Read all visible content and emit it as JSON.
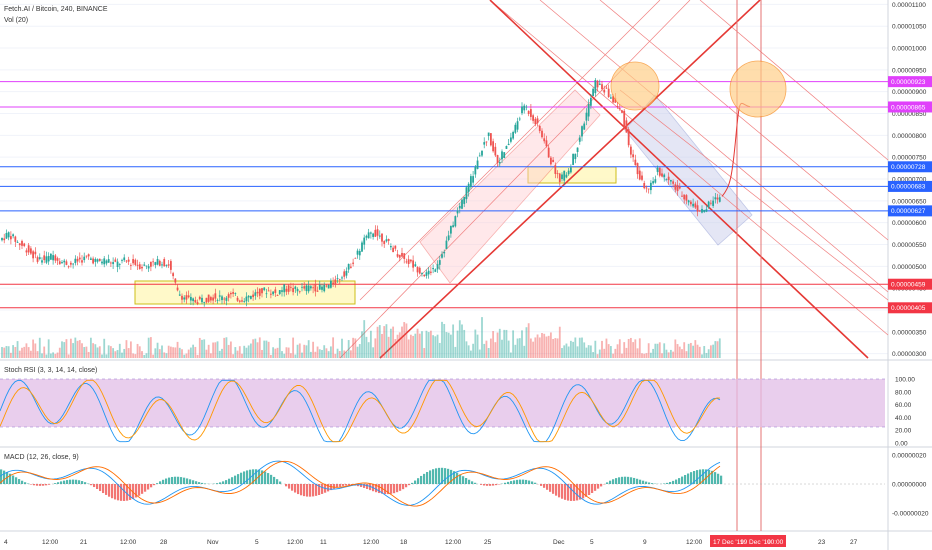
{
  "header": {
    "symbol_line": "Fetch.AI / Bitcoin, 240, BINANCE",
    "volume_label": "Vol (20)"
  },
  "indicators": {
    "stoch_rsi_label": "Stoch RSI (3, 3, 14, 14, close)",
    "macd_label": "MACD (12, 26, close, 9)"
  },
  "price_axis": {
    "ticks": [
      "0.00001100",
      "0.00001050",
      "0.00001000",
      "0.00000950",
      "0.00000900",
      "0.00000850",
      "0.00000800",
      "0.00000750",
      "0.00000700",
      "0.00000650",
      "0.00000600",
      "0.00000550",
      "0.00000500",
      "0.00000450",
      "0.00000400",
      "0.00000350",
      "0.00000300"
    ],
    "tags": [
      {
        "text": "0.00000923",
        "color": "#e040fb"
      },
      {
        "text": "0.00000865",
        "color": "#e040fb"
      },
      {
        "text": "0.00000728",
        "color": "#2962ff"
      },
      {
        "text": "0.00000683",
        "color": "#2962ff"
      },
      {
        "text": "0.00000627",
        "color": "#2962ff"
      },
      {
        "text": "0.00000459",
        "color": "#f23645"
      },
      {
        "text": "0.00000405",
        "color": "#f23645"
      }
    ]
  },
  "stoch_axis": {
    "ticks": [
      "100.00",
      "80.00",
      "60.00",
      "40.00",
      "20.00",
      "0.00"
    ]
  },
  "macd_axis": {
    "ticks": [
      "0.00000020",
      "0.00000000",
      "-0.00000020"
    ]
  },
  "time_axis": {
    "labels": [
      "4",
      "12:00",
      "21",
      "12:00",
      "28",
      "Nov",
      "5",
      "12:00",
      "11",
      "12:00",
      "18",
      "12:00",
      "25",
      "Dec",
      "5",
      "9",
      "12:00",
      "23",
      "27"
    ],
    "highlight": [
      "17 Dec '19",
      "19 Dec '19",
      "00:00"
    ],
    "highlight_color": "#f23645"
  },
  "colors": {
    "up": "#26a69a",
    "down": "#ef5350",
    "resistance": "#f23645",
    "magenta": "#e040fb",
    "blue": "#2962ff",
    "stoch_band": "#e1bee7",
    "circle_fill": "#ffcc80"
  },
  "chart_data": {
    "type": "candlestick",
    "title": "Fetch.AI / Bitcoin, 240, BINANCE",
    "y_range": [
      2.9e-06,
      1.11e-05
    ],
    "horizontal_levels": [
      9.23e-06,
      8.65e-06,
      7.28e-06,
      6.83e-06,
      6.27e-06,
      4.59e-06,
      4.05e-06
    ],
    "close_path": [
      5.6e-06,
      5.75e-06,
      5.55e-06,
      5.4e-06,
      5.2e-06,
      5.15e-06,
      5.25e-06,
      5.1e-06,
      5.05e-06,
      5.15e-06,
      5.2e-06,
      5.1e-06,
      5.15e-06,
      5.05e-06,
      5.12e-06,
      5.08e-06,
      5e-06,
      5.05e-06,
      5.1e-06,
      5.05e-06,
      4.4e-06,
      4.25e-06,
      4.2e-06,
      4.25e-06,
      4.3e-06,
      4.28e-06,
      4.35e-06,
      4.25e-06,
      4.3e-06,
      4.4e-06,
      4.45e-06,
      4.38e-06,
      4.5e-06,
      4.45e-06,
      4.48e-06,
      4.52e-06,
      4.5e-06,
      4.55e-06,
      4.7e-06,
      4.9e-06,
      5.2e-06,
      5.6e-06,
      5.8e-06,
      5.65e-06,
      5.45e-06,
      5.25e-06,
      5.1e-06,
      4.95e-06,
      4.8e-06,
      5e-06,
      5.4e-06,
      6e-06,
      6.5e-06,
      7e-06,
      7.6e-06,
      8e-06,
      7.4e-06,
      7.7e-06,
      8.2e-06,
      8.7e-06,
      8.4e-06,
      8e-06,
      7.4e-06,
      7e-06,
      7.2e-06,
      7.8e-06,
      8.5e-06,
      9.2e-06,
      9.05e-06,
      8.8e-06,
      8.5e-06,
      7.6e-06,
      7e-06,
      6.7e-06,
      7.2e-06,
      7e-06,
      6.8e-06,
      6.6e-06,
      6.4e-06,
      6.25e-06,
      6.45e-06,
      6.6e-06
    ],
    "projection": [
      7e-06,
      8e-06,
      8.7e-06
    ]
  }
}
